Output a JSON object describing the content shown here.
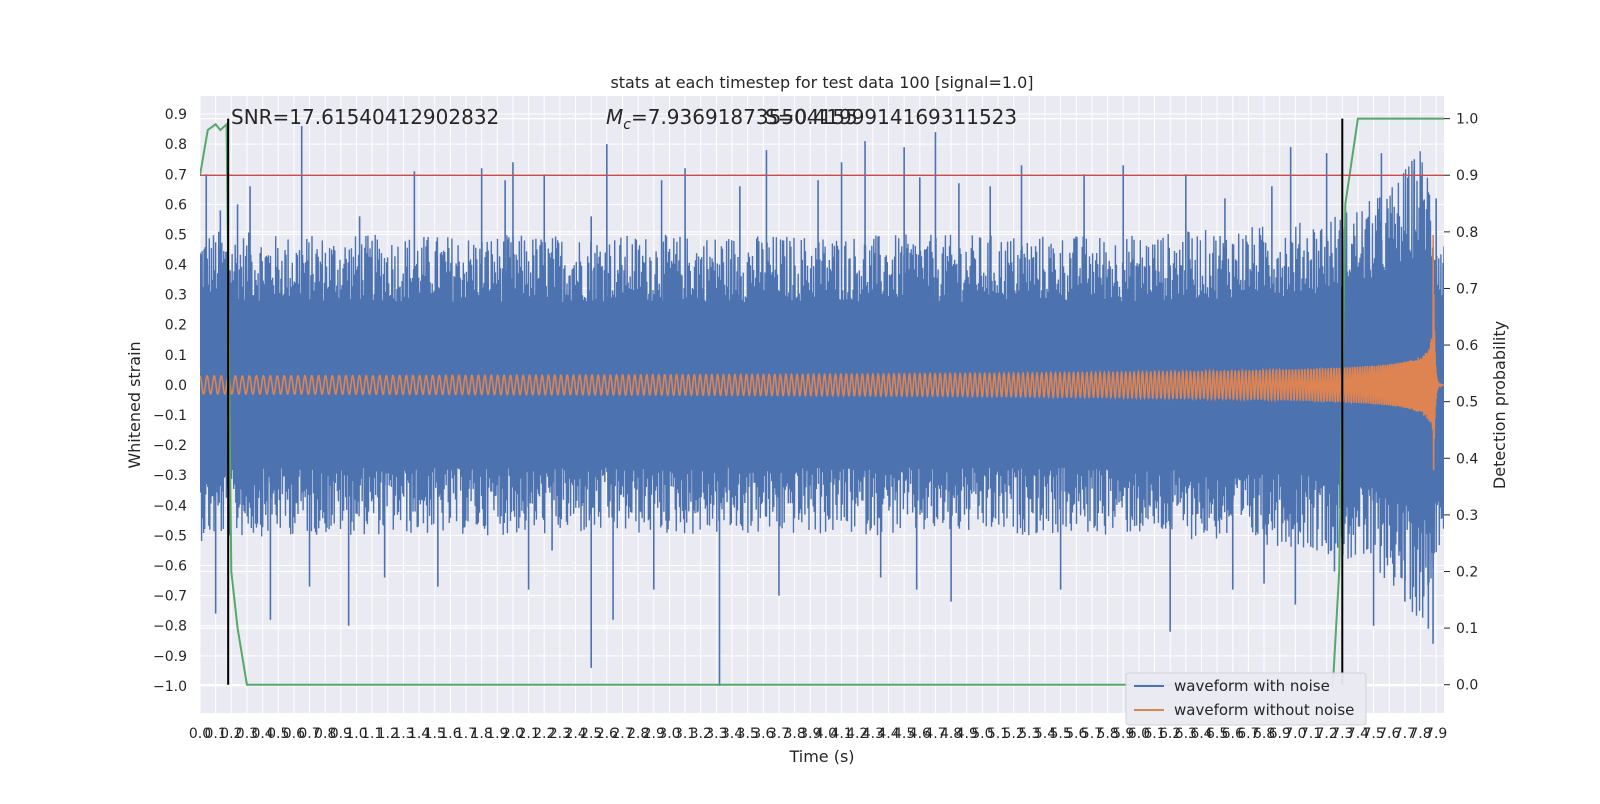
{
  "chart_data": {
    "type": "line",
    "title": "stats at each timestep for test data 100 [signal=1.0]",
    "xlabel": "Time (s)",
    "ylabel": "Whitened strain",
    "y2label": "Detection probability",
    "xlim": [
      0,
      7.95
    ],
    "ylim": [
      -1.09,
      0.96
    ],
    "y2lim": [
      -0.05,
      1.04
    ],
    "x_ticks": [
      0.0,
      0.1,
      0.2,
      0.3,
      0.4,
      0.5,
      0.6,
      0.7,
      0.8,
      0.9,
      1.0,
      1.1,
      1.2,
      1.3,
      1.4,
      1.5,
      1.6,
      1.7,
      1.8,
      1.9,
      2.0,
      2.1,
      2.2,
      2.3,
      2.4,
      2.5,
      2.6,
      2.7,
      2.8,
      2.9,
      3.0,
      3.1,
      3.2,
      3.3,
      3.4,
      3.5,
      3.6,
      3.7,
      3.8,
      3.9,
      4.0,
      4.1,
      4.2,
      4.3,
      4.4,
      4.5,
      4.6,
      4.7,
      4.8,
      4.9,
      5.0,
      5.1,
      5.2,
      5.3,
      5.4,
      5.5,
      5.6,
      5.7,
      5.8,
      5.9,
      6.0,
      6.1,
      6.2,
      6.3,
      6.4,
      6.5,
      6.6,
      6.7,
      6.8,
      6.9,
      7.0,
      7.1,
      7.2,
      7.3,
      7.4,
      7.5,
      7.6,
      7.7,
      7.8,
      7.9
    ],
    "x_tick_labels": [
      "0.0",
      "0.1",
      "0.2",
      "0.3",
      "0.4",
      "0.5",
      "0.6",
      "0.7",
      "0.8",
      "0.9",
      "1.0",
      "1.1",
      "1.2",
      "1.3",
      "1.4",
      "1.5",
      "1.6",
      "1.7",
      "1.8",
      "1.9",
      "2.0",
      "2.1",
      "2.2",
      "2.3",
      "2.4",
      "2.5",
      "2.6",
      "2.7",
      "2.8",
      "2.9",
      "3.0",
      "3.1",
      "3.2",
      "3.3",
      "3.4",
      "3.5",
      "3.6",
      "3.7",
      "3.8",
      "3.9",
      "4.0",
      "4.1",
      "4.2",
      "4.3",
      "4.4",
      "4.5",
      "4.6",
      "4.7",
      "4.8",
      "4.9",
      "5.0",
      "5.1",
      "5.2",
      "5.3",
      "5.4",
      "5.5",
      "5.6",
      "5.7",
      "5.8",
      "5.9",
      "6.0",
      "6.1",
      "6.2",
      "6.3",
      "6.4",
      "6.5",
      "6.6",
      "6.7",
      "6.8",
      "6.9",
      "7.0",
      "7.1",
      "7.2",
      "7.3",
      "7.4",
      "7.5",
      "7.6",
      "7.7",
      "7.8",
      "7.9"
    ],
    "y_ticks": [
      0.9,
      0.8,
      0.7,
      0.6,
      0.5,
      0.4,
      0.3,
      0.2,
      0.1,
      0.0,
      -0.1,
      -0.2,
      -0.3,
      -0.4,
      -0.5,
      -0.6,
      -0.7,
      -0.8,
      -0.9,
      -1.0
    ],
    "y_tick_labels": [
      "0.9",
      "0.8",
      "0.7",
      "0.6",
      "0.5",
      "0.4",
      "0.3",
      "0.2",
      "0.1",
      "0.0",
      "−0.1",
      "−0.2",
      "−0.3",
      "−0.4",
      "−0.5",
      "−0.6",
      "−0.7",
      "−0.8",
      "−0.9",
      "−1.0"
    ],
    "y2_ticks": [
      1.0,
      0.9,
      0.8,
      0.7,
      0.6,
      0.5,
      0.4,
      0.3,
      0.2,
      0.1,
      0.0
    ],
    "y2_tick_labels": [
      "1.0",
      "0.9",
      "0.8",
      "0.7",
      "0.6",
      "0.5",
      "0.4",
      "0.3",
      "0.2",
      "0.1",
      "0.0"
    ],
    "annotations": {
      "snr": "SNR=17.61540412902832",
      "mc": "=7.936918735504155",
      "mc_symbol": "M",
      "mc_subscript": "c",
      "overlap": "S=0.4199914169311523"
    },
    "series": [
      {
        "name": "waveform with noise",
        "color": "#4c72b0",
        "axis": "left",
        "envelope": {
          "t": [
            0.0,
            0.5,
            1.0,
            2.0,
            3.0,
            4.0,
            5.0,
            6.0,
            6.5,
            7.0,
            7.2,
            7.4,
            7.5,
            7.6,
            7.7,
            7.75,
            7.8,
            7.85,
            7.88,
            7.9,
            7.93,
            7.95
          ],
          "upper": [
            0.52,
            0.5,
            0.5,
            0.5,
            0.5,
            0.5,
            0.5,
            0.5,
            0.52,
            0.54,
            0.56,
            0.6,
            0.62,
            0.66,
            0.72,
            0.76,
            0.8,
            0.74,
            0.62,
            0.56,
            0.52,
            0.5
          ],
          "lower": [
            -0.52,
            -0.5,
            -0.5,
            -0.5,
            -0.5,
            -0.5,
            -0.5,
            -0.5,
            -0.52,
            -0.54,
            -0.56,
            -0.6,
            -0.62,
            -0.66,
            -0.72,
            -0.76,
            -0.8,
            -0.74,
            -0.62,
            -0.56,
            -0.52,
            -0.5
          ]
        },
        "spikes": [
          [
            0.04,
            0.7
          ],
          [
            0.1,
            -0.76
          ],
          [
            0.13,
            0.58
          ],
          [
            0.24,
            0.6
          ],
          [
            0.32,
            0.66
          ],
          [
            0.45,
            -0.78
          ],
          [
            0.65,
            0.86
          ],
          [
            0.7,
            -0.67
          ],
          [
            0.95,
            -0.8
          ],
          [
            1.02,
            0.56
          ],
          [
            1.18,
            -0.64
          ],
          [
            1.37,
            0.71
          ],
          [
            1.52,
            -0.67
          ],
          [
            1.8,
            0.72
          ],
          [
            1.95,
            0.68
          ],
          [
            2.0,
            0.74
          ],
          [
            2.1,
            -0.68
          ],
          [
            2.2,
            0.7
          ],
          [
            2.25,
            -0.55
          ],
          [
            2.5,
            0.56
          ],
          [
            2.5,
            -0.94
          ],
          [
            2.6,
            0.8
          ],
          [
            2.64,
            -0.78
          ],
          [
            2.9,
            -0.68
          ],
          [
            2.95,
            0.68
          ],
          [
            3.1,
            0.72
          ],
          [
            3.32,
            -1.0
          ],
          [
            3.45,
            0.66
          ],
          [
            3.62,
            0.78
          ],
          [
            3.7,
            -0.7
          ],
          [
            3.95,
            0.68
          ],
          [
            4.1,
            0.74
          ],
          [
            4.25,
            0.81
          ],
          [
            4.35,
            -0.64
          ],
          [
            4.5,
            0.79
          ],
          [
            4.58,
            -0.68
          ],
          [
            4.6,
            0.69
          ],
          [
            4.7,
            0.84
          ],
          [
            4.8,
            -0.72
          ],
          [
            4.85,
            0.67
          ],
          [
            5.05,
            0.66
          ],
          [
            5.25,
            0.73
          ],
          [
            5.5,
            -0.68
          ],
          [
            5.65,
            0.7
          ],
          [
            5.9,
            0.73
          ],
          [
            6.2,
            -0.82
          ],
          [
            6.3,
            0.7
          ],
          [
            6.55,
            0.62
          ],
          [
            6.6,
            -0.68
          ],
          [
            6.8,
            -0.66
          ],
          [
            6.85,
            0.66
          ],
          [
            6.97,
            0.79
          ],
          [
            7.0,
            -0.73
          ],
          [
            7.2,
            0.77
          ],
          [
            7.25,
            -0.62
          ],
          [
            7.5,
            -0.8
          ],
          [
            7.55,
            0.77
          ],
          [
            7.7,
            -0.72
          ],
          [
            7.76,
            0.75
          ],
          [
            7.85,
            -0.81
          ],
          [
            7.88,
            -0.86
          ],
          [
            7.9,
            0.62
          ]
        ]
      },
      {
        "name": "waveform without noise",
        "color": "#dd8452",
        "axis": "left",
        "chirp": {
          "t_merger": 7.88,
          "f_start_hz": 22,
          "amp_start": 0.03,
          "amp_peak": 0.6,
          "ringdown_end": 7.92
        }
      },
      {
        "name": "",
        "color": "#55a868",
        "axis": "right",
        "x": [
          0.0,
          0.05,
          0.1,
          0.13,
          0.17,
          0.2,
          0.24,
          0.3,
          7.24,
          7.28,
          7.32,
          7.4,
          7.95
        ],
        "y": [
          0.9,
          0.98,
          0.99,
          0.98,
          0.99,
          0.2,
          0.1,
          0.0,
          0.0,
          0.2,
          0.85,
          1.0,
          1.0
        ]
      }
    ],
    "hlines": [
      {
        "y": 0.9,
        "axis": "right",
        "color": "#c44e52"
      }
    ],
    "vlines": [
      {
        "x": 0.18,
        "color": "#000000"
      },
      {
        "x": 7.3,
        "color": "#000000"
      }
    ],
    "legend": {
      "placement": "lower-right",
      "entries": [
        {
          "label": "waveform with noise",
          "color": "#4c72b0"
        },
        {
          "label": "waveform without noise",
          "color": "#dd8452"
        }
      ]
    },
    "grid": true,
    "colors": {
      "axes_bg": "#eaeaf2",
      "grid": "#ffffff",
      "text": "#262626"
    }
  }
}
